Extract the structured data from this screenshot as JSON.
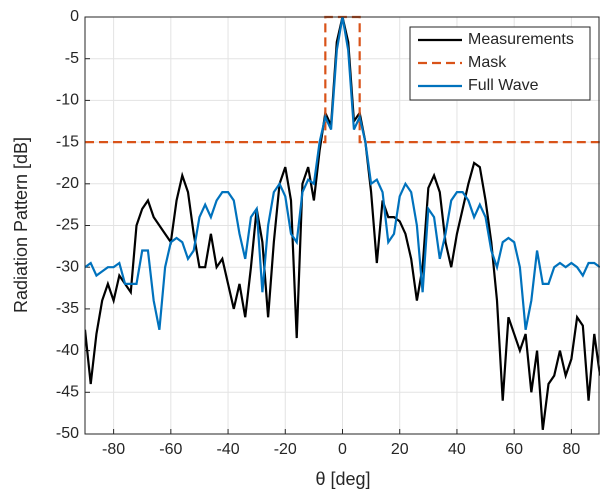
{
  "chart_data": {
    "type": "line",
    "xlabel": "θ [deg]",
    "ylabel": "Radiation Pattern [dB]",
    "xlim": [
      -90,
      90
    ],
    "xticks": [
      -80,
      -60,
      -40,
      -20,
      0,
      20,
      40,
      60,
      80
    ],
    "ylim": [
      -50,
      0
    ],
    "yticks": [
      0,
      -5,
      -10,
      -15,
      -20,
      -25,
      -30,
      -35,
      -40,
      -45,
      -50
    ],
    "grid": true,
    "legend": "upper right",
    "series": [
      {
        "name": "Measurements",
        "color": "#000000",
        "dash": "solid",
        "x": [
          -90,
          -88,
          -86,
          -84,
          -82,
          -80,
          -78,
          -76,
          -74,
          -72,
          -70,
          -68,
          -66,
          -64,
          -62,
          -60,
          -58,
          -56,
          -54,
          -52,
          -50,
          -48,
          -46,
          -44,
          -42,
          -40,
          -38,
          -36,
          -34,
          -32,
          -30,
          -28,
          -26,
          -24,
          -22,
          -20,
          -18,
          -16,
          -14,
          -12,
          -10,
          -8,
          -6,
          -4,
          -2,
          0,
          2,
          4,
          6,
          8,
          10,
          12,
          14,
          16,
          18,
          20,
          22,
          24,
          26,
          28,
          30,
          32,
          34,
          36,
          38,
          40,
          42,
          44,
          46,
          48,
          50,
          52,
          54,
          56,
          58,
          60,
          62,
          64,
          66,
          68,
          70,
          72,
          74,
          76,
          78,
          80,
          82,
          84,
          86,
          88,
          90
        ],
        "values": [
          -37.5,
          -44,
          -38,
          -34,
          -32,
          -34,
          -31,
          -32,
          -33,
          -25,
          -23,
          -22,
          -24,
          -25,
          -26,
          -27,
          -22,
          -19,
          -21,
          -26,
          -30,
          -30,
          -26,
          -30,
          -29,
          -32,
          -35,
          -32,
          -36,
          -30,
          -23,
          -27,
          -36,
          -27,
          -20,
          -18,
          -22,
          -38.5,
          -20,
          -18,
          -22,
          -16,
          -11.5,
          -13,
          -3,
          0,
          -3,
          -12.5,
          -11.5,
          -15,
          -21,
          -29.5,
          -22,
          -24,
          -24,
          -24.5,
          -26,
          -29,
          -34,
          -30,
          -20.5,
          -19,
          -21,
          -27,
          -30,
          -26,
          -23,
          -20,
          -17.5,
          -18,
          -22,
          -27,
          -34,
          -46,
          -36,
          -38,
          -40,
          -38,
          -45,
          -40,
          -49.5,
          -44,
          -43,
          -40,
          -43,
          -41,
          -36,
          -37,
          -46,
          -38,
          -43
        ]
      },
      {
        "name": "Mask",
        "color": "#D95319",
        "dash": "dashed",
        "x": [
          -90,
          -6,
          -6,
          6,
          6,
          90
        ],
        "values": [
          -15,
          -15,
          0,
          0,
          -15,
          -15
        ]
      },
      {
        "name": "Full Wave",
        "color": "#0072BD",
        "dash": "solid",
        "x": [
          -90,
          -88,
          -86,
          -84,
          -82,
          -80,
          -78,
          -76,
          -74,
          -72,
          -70,
          -68,
          -66,
          -64,
          -62,
          -60,
          -58,
          -56,
          -54,
          -52,
          -50,
          -48,
          -46,
          -44,
          -42,
          -40,
          -38,
          -36,
          -34,
          -32,
          -30,
          -28,
          -26,
          -24,
          -22,
          -20,
          -18,
          -16,
          -14,
          -12,
          -10,
          -8,
          -6,
          -4,
          -2,
          0,
          2,
          4,
          6,
          8,
          10,
          12,
          14,
          16,
          18,
          20,
          22,
          24,
          26,
          28,
          30,
          32,
          34,
          36,
          38,
          40,
          42,
          44,
          46,
          48,
          50,
          52,
          54,
          56,
          58,
          60,
          62,
          64,
          66,
          68,
          70,
          72,
          74,
          76,
          78,
          80,
          82,
          84,
          86,
          88,
          90
        ],
        "values": [
          -30,
          -29.5,
          -31,
          -30.5,
          -30,
          -30,
          -29.5,
          -32,
          -32,
          -32,
          -28,
          -28,
          -34,
          -37.5,
          -30,
          -27,
          -26.5,
          -27,
          -29,
          -28,
          -24,
          -22.5,
          -24,
          -22,
          -21,
          -21,
          -22,
          -26,
          -29,
          -24,
          -23,
          -33,
          -25,
          -21,
          -20,
          -21.5,
          -26,
          -27,
          -21,
          -19.5,
          -20,
          -15,
          -12,
          -13.5,
          -4,
          0,
          -4,
          -13.5,
          -12,
          -15,
          -20,
          -19.5,
          -21,
          -27,
          -26,
          -21.5,
          -20,
          -21,
          -25,
          -33,
          -23,
          -24,
          -29,
          -26,
          -22,
          -21,
          -21,
          -22,
          -24,
          -22.5,
          -24,
          -28,
          -30,
          -27,
          -26.5,
          -27,
          -30,
          -37.5,
          -34,
          -28,
          -32,
          -32,
          -30,
          -29.5,
          -30,
          -29.5,
          -30,
          -31,
          -29.5,
          -29.5,
          -30
        ]
      }
    ]
  }
}
